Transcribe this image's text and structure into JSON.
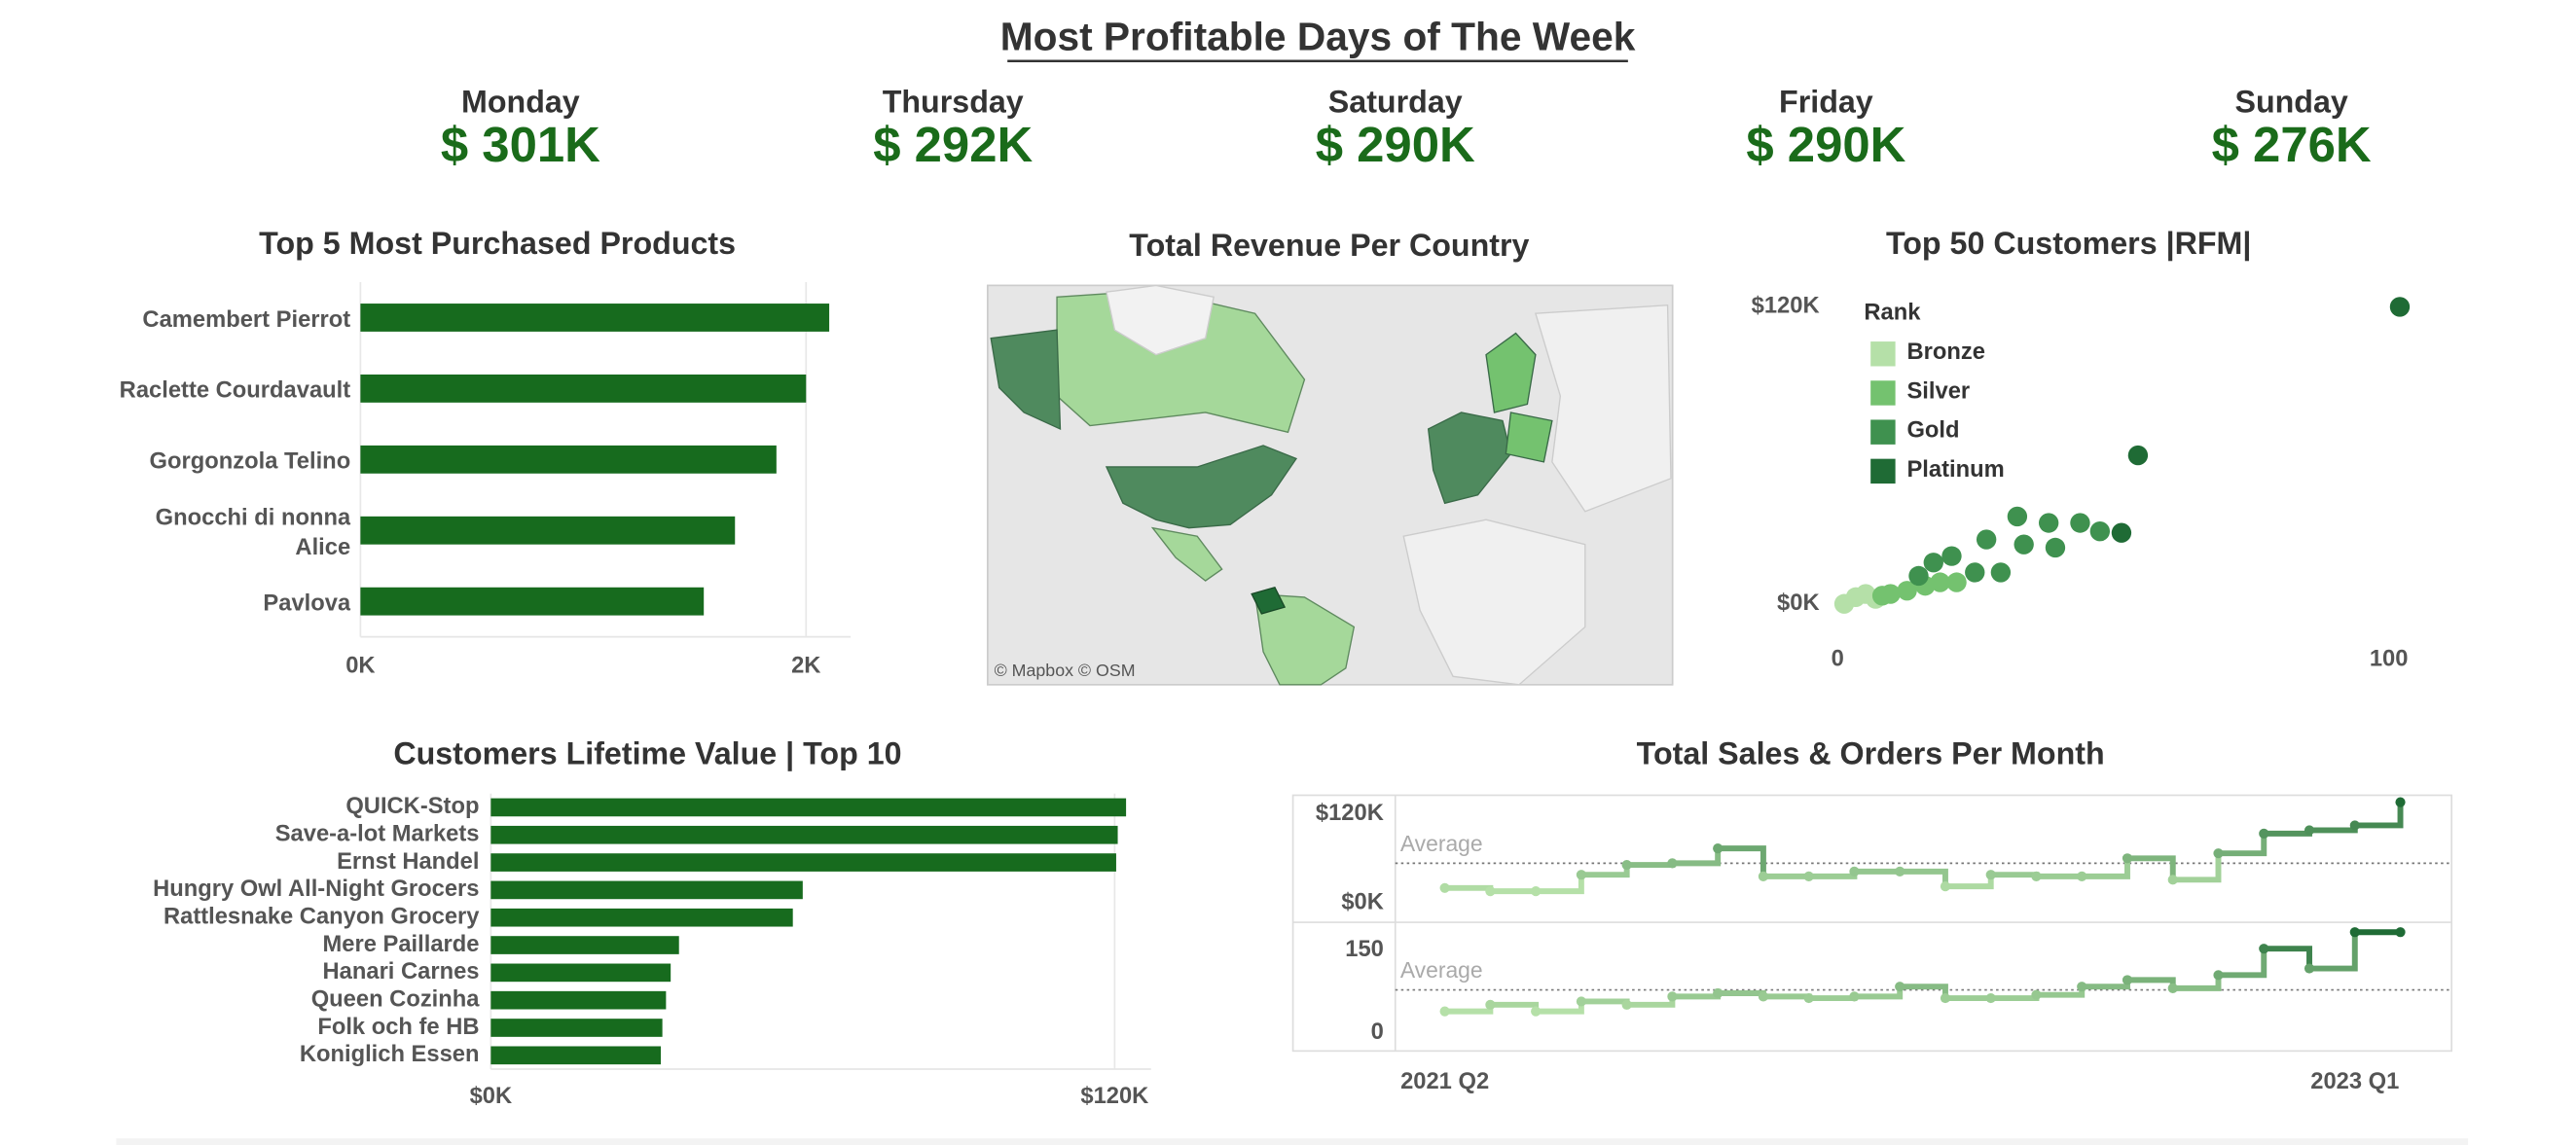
{
  "title": "Most Profitable Days of The Week",
  "kpis": {
    "categories": [
      "Monday",
      "Thursday",
      "Saturday",
      "Friday",
      "Sunday"
    ],
    "values": [
      301000,
      292000,
      290000,
      290000,
      276000
    ],
    "value_labels": [
      "$ 301K",
      "$ 292K",
      "$ 290K",
      "$ 290K",
      "$ 276K"
    ],
    "color": "#1a6b1a"
  },
  "chart_data": [
    {
      "type": "hbar",
      "title": "Top 5 Most Purchased Products",
      "categories": [
        "Camembert Pierrot",
        "Raclette Courdavault",
        "Gorgonzola Telino",
        "Gnocchi di nonna Alice",
        "Pavlova"
      ],
      "values": [
        2104,
        2000,
        1867,
        1681,
        1541
      ],
      "color": "#176b1e",
      "xlim": [
        0,
        2200
      ],
      "xticks": [
        {
          "value": 0,
          "label": "0K"
        },
        {
          "value": 2000,
          "label": "2K"
        }
      ]
    },
    {
      "type": "map",
      "title": "Total Revenue Per Country",
      "attribution": "© Mapbox © OSM"
    },
    {
      "type": "scatter",
      "title": "Top 50 Customers |RFM|",
      "legend_title": "Rank",
      "series": [
        {
          "name": "Bronze",
          "color": "#b5e0a8",
          "x": [
            1.2,
            3.3,
            5.1,
            6.9
          ],
          "values": [
            0,
            2700,
            4000,
            2000
          ]
        },
        {
          "name": "Silver",
          "color": "#74c26f",
          "x": [
            8.1,
            9.6,
            12.6,
            15.9,
            18.6,
            21.6
          ],
          "values": [
            3300,
            4000,
            5300,
            7300,
            8700,
            8700
          ]
        },
        {
          "name": "Gold",
          "color": "#3f914f",
          "x": [
            14.7,
            17.4,
            20.7,
            24.9,
            27,
            29.6,
            32.6,
            33.8,
            38.3,
            39.5,
            44,
            47.6
          ],
          "values": [
            11300,
            16700,
            19300,
            12700,
            26000,
            12700,
            35300,
            24000,
            32700,
            22700,
            32700,
            29300
          ]
        },
        {
          "name": "Platinum",
          "color": "#1f6b35",
          "x": [
            51.5,
            54.5,
            102
          ],
          "values": [
            28700,
            60000,
            120000
          ]
        }
      ],
      "xlim": [
        -2,
        106
      ],
      "ylim": [
        -5000,
        125000
      ],
      "xticks": [
        0,
        100
      ],
      "yticks": [
        {
          "value": 0,
          "label": "$0K"
        },
        {
          "value": 120000,
          "label": "$120K"
        }
      ]
    },
    {
      "type": "hbar",
      "title": "Customers Lifetime Value | Top 10",
      "categories": [
        "QUICK-Stop",
        "Save-a-lot Markets",
        "Ernst Handel",
        "Hungry Owl All-Night Grocers",
        "Rattlesnake Canyon Grocery",
        "Mere Paillarde",
        "Hanari Carnes",
        "Queen Cozinha",
        "Folk och fe HB",
        "Koniglich Essen"
      ],
      "values": [
        122200,
        120600,
        120300,
        60000,
        58100,
        36200,
        34600,
        33700,
        33000,
        32700
      ],
      "color": "#176b1e",
      "xlim": [
        0,
        127000
      ],
      "xticks": [
        {
          "value": 0,
          "label": "$0K"
        },
        {
          "value": 120000,
          "label": "$120K"
        }
      ]
    },
    {
      "type": "step",
      "title": "Total Sales & Orders Per Month",
      "categories": [
        "2021 Q2",
        null,
        null,
        null,
        null,
        null,
        null,
        null,
        null,
        null,
        null,
        null,
        null,
        null,
        null,
        null,
        null,
        null,
        null,
        null,
        "2023 Q1",
        null
      ],
      "colors": [
        "#b5e0a8",
        "#1f6b35"
      ],
      "panels": [
        {
          "values": [
            20000,
            15600,
            15600,
            37800,
            51100,
            53300,
            73300,
            35600,
            35600,
            42200,
            42200,
            22200,
            37800,
            35600,
            35600,
            60000,
            31100,
            66700,
            93300,
            97800,
            104400,
            135600
          ],
          "ylim": [
            -24000,
            145000
          ],
          "yticks": [
            {
              "value": 0,
              "label": "$0K"
            },
            {
              "value": 120000,
              "label": "$120K"
            }
          ],
          "average": 53300,
          "average_label": "Average"
        },
        {
          "values": [
            39,
            51,
            39,
            57,
            51,
            66,
            72,
            66,
            63,
            66,
            84,
            63,
            63,
            69,
            84,
            96,
            81,
            105,
            153,
            117,
            183,
            183
          ],
          "ylim": [
            -33,
            198
          ],
          "yticks": [
            0,
            150
          ],
          "average": 78,
          "average_label": "Average"
        }
      ]
    }
  ]
}
